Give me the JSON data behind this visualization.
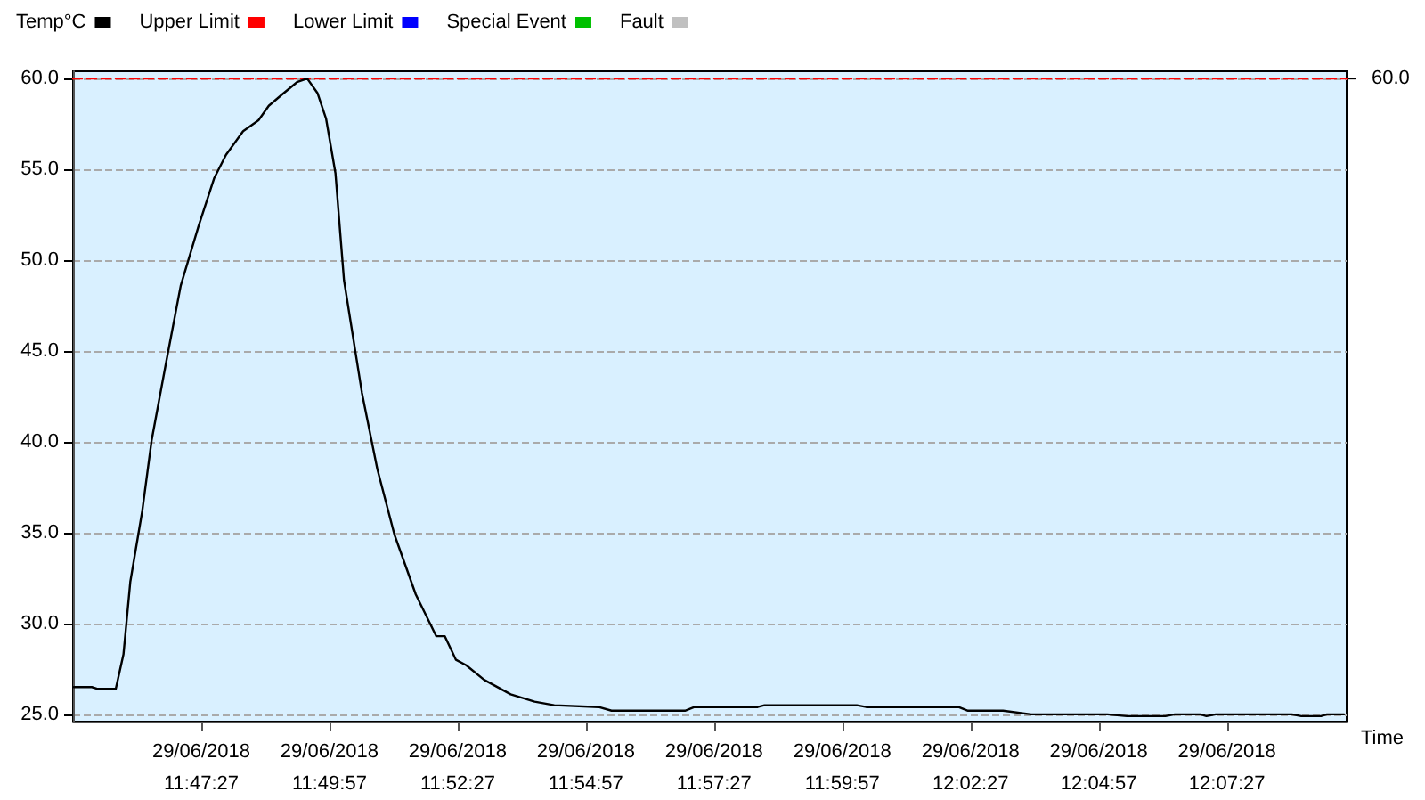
{
  "chart_data": {
    "type": "line",
    "xlabel": "Time",
    "x": [
      "2018-06-29T11:44:58",
      "2018-06-29T11:45:19",
      "2018-06-29T11:45:26",
      "2018-06-29T11:45:47",
      "2018-06-29T11:45:56",
      "2018-06-29T11:46:04",
      "2018-06-29T11:46:18",
      "2018-06-29T11:46:29",
      "2018-06-29T11:46:46",
      "2018-06-29T11:47:03",
      "2018-06-29T11:47:24",
      "2018-06-29T11:47:42",
      "2018-06-29T11:47:56",
      "2018-06-29T11:48:16",
      "2018-06-29T11:48:34",
      "2018-06-29T11:48:46",
      "2018-06-29T11:49:01",
      "2018-06-29T11:49:19",
      "2018-06-29T11:49:31",
      "2018-06-29T11:49:43",
      "2018-06-29T11:49:53",
      "2018-06-29T11:50:04",
      "2018-06-29T11:50:14",
      "2018-06-29T11:50:35",
      "2018-06-29T11:50:53",
      "2018-06-29T11:51:13",
      "2018-06-29T11:51:38",
      "2018-06-29T11:52:02",
      "2018-06-29T11:52:12",
      "2018-06-29T11:52:25",
      "2018-06-29T11:52:37",
      "2018-06-29T11:52:58",
      "2018-06-29T11:53:29",
      "2018-06-29T11:53:57",
      "2018-06-29T11:54:20",
      "2018-06-29T11:55:12",
      "2018-06-29T11:55:27",
      "2018-06-29T11:56:53",
      "2018-06-29T11:57:04",
      "2018-06-29T11:58:18",
      "2018-06-29T11:58:26",
      "2018-06-29T12:00:14",
      "2018-06-29T12:00:25",
      "2018-06-29T12:02:13",
      "2018-06-29T12:02:24",
      "2018-06-29T12:03:05",
      "2018-06-29T12:03:38",
      "2018-06-29T12:05:07",
      "2018-06-29T12:05:30",
      "2018-06-29T12:06:15",
      "2018-06-29T12:06:26",
      "2018-06-29T12:06:56",
      "2018-06-29T12:07:03",
      "2018-06-29T12:07:14",
      "2018-06-29T12:08:43",
      "2018-06-29T12:08:54",
      "2018-06-29T12:09:17",
      "2018-06-29T12:09:24",
      "2018-06-29T12:09:44"
    ],
    "series": [
      {
        "name": "Temp°C",
        "color": "#000000",
        "values": [
          26.5,
          26.5,
          26.4,
          26.4,
          28.3,
          32.3,
          36.2,
          40.1,
          44.4,
          48.6,
          51.9,
          54.5,
          55.8,
          57.1,
          57.7,
          58.5,
          59.1,
          59.8,
          60.0,
          59.2,
          57.8,
          54.8,
          48.9,
          42.7,
          38.5,
          34.9,
          31.6,
          29.3,
          29.3,
          28.0,
          27.7,
          26.9,
          26.1,
          25.7,
          25.5,
          25.4,
          25.2,
          25.2,
          25.4,
          25.4,
          25.5,
          25.5,
          25.4,
          25.4,
          25.2,
          25.2,
          25.0,
          25.0,
          24.9,
          24.9,
          25.0,
          25.0,
          24.9,
          25.0,
          25.0,
          24.9,
          24.9,
          25.0,
          25.0
        ]
      },
      {
        "name": "Upper Limit",
        "color": "#ff0000",
        "x": [
          "2018-06-29T11:44:57",
          "2018-06-29T12:09:47"
        ],
        "values": [
          60,
          60
        ],
        "line_style": "dashed"
      },
      {
        "name": "Lower Limit",
        "color": "#0000ff",
        "values": [
          null,
          null,
          null,
          null,
          null,
          null,
          null,
          null,
          null,
          null,
          null,
          null,
          null,
          null,
          null,
          null,
          null,
          null,
          null,
          null,
          null,
          null,
          null,
          null,
          null,
          null,
          null,
          null,
          null,
          null,
          null,
          null,
          null,
          null,
          null,
          null,
          null,
          null,
          null,
          null,
          null,
          null,
          null,
          null,
          null,
          null,
          null,
          null,
          null,
          null,
          null,
          null,
          null,
          null,
          null,
          null,
          null,
          null,
          null
        ]
      },
      {
        "name": "Special Event",
        "color": "#00c000",
        "values": [
          null,
          null,
          null,
          null,
          null,
          null,
          null,
          null,
          null,
          null,
          null,
          null,
          null,
          null,
          null,
          null,
          null,
          null,
          null,
          null,
          null,
          null,
          null,
          null,
          null,
          null,
          null,
          null,
          null,
          null,
          null,
          null,
          null,
          null,
          null,
          null,
          null,
          null,
          null,
          null,
          null,
          null,
          null,
          null,
          null,
          null,
          null,
          null,
          null,
          null,
          null,
          null,
          null,
          null,
          null,
          null,
          null,
          null,
          null
        ]
      },
      {
        "name": "Fault",
        "color": "#c0c0c0",
        "values": [
          null,
          null,
          null,
          null,
          null,
          null,
          null,
          null,
          null,
          null,
          null,
          null,
          null,
          null,
          null,
          null,
          null,
          null,
          null,
          null,
          null,
          null,
          null,
          null,
          null,
          null,
          null,
          null,
          null,
          null,
          null,
          null,
          null,
          null,
          null,
          null,
          null,
          null,
          null,
          null,
          null,
          null,
          null,
          null,
          null,
          null,
          null,
          null,
          null,
          null,
          null,
          null,
          null,
          null,
          null,
          null,
          null,
          null,
          null
        ]
      }
    ],
    "annotations": [
      {
        "text": "60.0",
        "x": "2018-06-29T12:09:47",
        "y": 60
      }
    ],
    "xlim": [
      "2018-06-29T11:44:57",
      "2018-06-29T12:09:47"
    ],
    "xticks": [
      {
        "value": "2018-06-29T11:47:27",
        "label": "29/06/2018\n11:47:27"
      },
      {
        "value": "2018-06-29T11:49:57",
        "label": "29/06/2018\n11:49:57"
      },
      {
        "value": "2018-06-29T11:52:27",
        "label": "29/06/2018\n11:52:27"
      },
      {
        "value": "2018-06-29T11:54:57",
        "label": "29/06/2018\n11:54:57"
      },
      {
        "value": "2018-06-29T11:57:27",
        "label": "29/06/2018\n11:57:27"
      },
      {
        "value": "2018-06-29T11:59:57",
        "label": "29/06/2018\n11:59:57"
      },
      {
        "value": "2018-06-29T12:02:27",
        "label": "29/06/2018\n12:02:27"
      },
      {
        "value": "2018-06-29T12:04:57",
        "label": "29/06/2018\n12:04:57"
      },
      {
        "value": "2018-06-29T12:07:27",
        "label": "29/06/2018\n12:07:27"
      }
    ],
    "ylim": [
      24.6,
      60.4
    ],
    "yticks": [
      {
        "value": 25,
        "label": "25.0"
      },
      {
        "value": 30,
        "label": "30.0"
      },
      {
        "value": 35,
        "label": "35.0"
      },
      {
        "value": 40,
        "label": "40.0"
      },
      {
        "value": 45,
        "label": "45.0"
      },
      {
        "value": 50,
        "label": "50.0"
      },
      {
        "value": 55,
        "label": "55.0"
      },
      {
        "value": 60,
        "label": "60.0"
      }
    ],
    "grid": "y",
    "legend": "top left",
    "marker": "none",
    "line_style": "solid"
  }
}
